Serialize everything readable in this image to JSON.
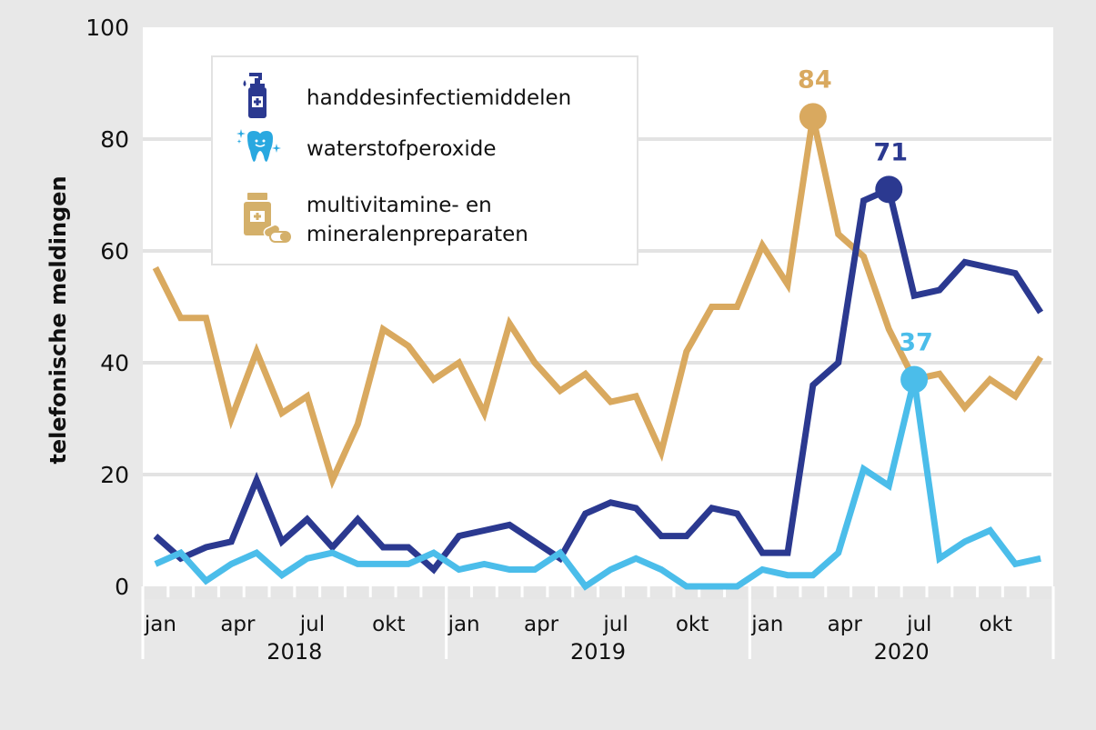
{
  "chart_data": {
    "type": "line",
    "title": "",
    "xlabel": "",
    "ylabel": "telefonische meldingen",
    "ylim": [
      0,
      100
    ],
    "yticks": [
      0,
      20,
      40,
      60,
      80,
      100
    ],
    "grid": true,
    "legend_position": "top-left",
    "years": [
      "2018",
      "2019",
      "2020"
    ],
    "month_tick_labels": [
      "jan",
      "apr",
      "jul",
      "okt"
    ],
    "x": [
      "2018-01",
      "2018-02",
      "2018-03",
      "2018-04",
      "2018-05",
      "2018-06",
      "2018-07",
      "2018-08",
      "2018-09",
      "2018-10",
      "2018-11",
      "2018-12",
      "2019-01",
      "2019-02",
      "2019-03",
      "2019-04",
      "2019-05",
      "2019-06",
      "2019-07",
      "2019-08",
      "2019-09",
      "2019-10",
      "2019-11",
      "2019-12",
      "2020-01",
      "2020-02",
      "2020-03",
      "2020-04",
      "2020-05",
      "2020-06",
      "2020-07",
      "2020-08",
      "2020-09",
      "2020-10",
      "2020-11",
      "2020-12"
    ],
    "series": [
      {
        "name": "multivitamine- en mineralenpreparaten",
        "legend_lines": [
          "multivitamine- en",
          "mineralenpreparaten"
        ],
        "icon": "pill-bottle-icon",
        "color": "#d9a95f",
        "values": [
          57,
          48,
          48,
          30,
          42,
          31,
          34,
          19,
          29,
          46,
          43,
          37,
          40,
          31,
          47,
          40,
          35,
          38,
          33,
          34,
          24,
          42,
          50,
          50,
          61,
          54,
          84,
          63,
          59,
          46,
          37,
          38,
          32,
          37,
          34,
          41
        ],
        "annotation": {
          "index": 26,
          "label": "84"
        }
      },
      {
        "name": "handdesinfectiemiddelen",
        "legend_lines": [
          "handdesinfectiemiddelen"
        ],
        "icon": "sanitizer-bottle-icon",
        "color": "#2b3990",
        "values": [
          9,
          5,
          7,
          8,
          19,
          8,
          12,
          7,
          12,
          7,
          7,
          3,
          9,
          10,
          11,
          8,
          5,
          13,
          15,
          14,
          9,
          9,
          14,
          13,
          6,
          6,
          36,
          40,
          69,
          71,
          52,
          53,
          58,
          57,
          56,
          49
        ],
        "annotation": {
          "index": 29,
          "label": "71"
        }
      },
      {
        "name": "waterstofperoxide",
        "legend_lines": [
          "waterstofperoxide"
        ],
        "icon": "tooth-icon",
        "color": "#4bbdea",
        "values": [
          4,
          6,
          1,
          4,
          6,
          2,
          5,
          6,
          4,
          4,
          4,
          6,
          3,
          4,
          3,
          3,
          6,
          0,
          3,
          5,
          3,
          0,
          0,
          0,
          3,
          2,
          2,
          6,
          21,
          18,
          37,
          5,
          8,
          10,
          4,
          5
        ],
        "annotation": {
          "index": 30,
          "label": "37"
        }
      }
    ],
    "legend_order": [
      1,
      2,
      0
    ]
  }
}
